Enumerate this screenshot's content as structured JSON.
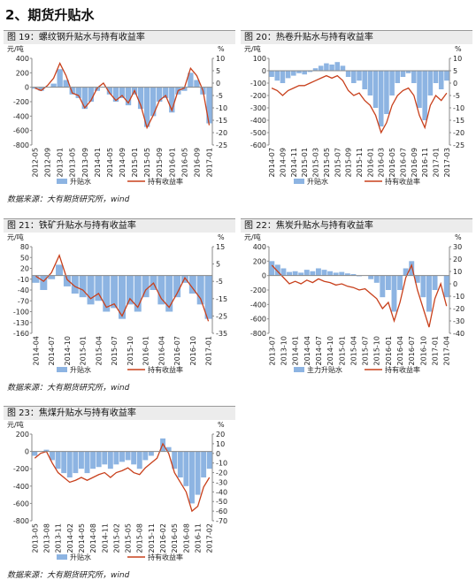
{
  "page_title": "2、期货升贴水",
  "chart_data": [
    {
      "type": "bar-line",
      "title": "图 19：螺纹钢升贴水与持有收益率",
      "source": "数据来源：大有期货研究所，wind",
      "y_unit": "元/吨",
      "y2_unit": "%",
      "categories": [
        "2012-05",
        null,
        "2012-09",
        null,
        "2013-01",
        null,
        "2013-05",
        null,
        "2013-09",
        null,
        "2014-01",
        null,
        "2014-05",
        null,
        "2014-09",
        null,
        "2015-01",
        null,
        "2015-05",
        null,
        "2015-09",
        null,
        "2016-01",
        null,
        "2016-05",
        null,
        "2016-09",
        null,
        "2017-01"
      ],
      "series": [
        {
          "name": "升贴水",
          "color": "#8db4e2",
          "values": [
            -20,
            -50,
            0,
            50,
            250,
            100,
            -100,
            -150,
            -300,
            -200,
            -50,
            0,
            -100,
            -200,
            -150,
            -250,
            -100,
            -300,
            -550,
            -400,
            -200,
            -150,
            -350,
            -100,
            -50,
            200,
            100,
            -100,
            -500
          ]
        },
        {
          "name": "持有收益率",
          "color": "#c8401c",
          "axis": "y2",
          "values": [
            -2,
            -3,
            -1,
            2,
            8,
            3,
            -4,
            -5,
            -10,
            -7,
            -2,
            0,
            -4,
            -7,
            -5,
            -8,
            -3,
            -9,
            -18,
            -13,
            -7,
            -5,
            -11,
            -3,
            -2,
            6,
            3,
            -3,
            -17
          ]
        }
      ],
      "ylim": [
        -800,
        400
      ],
      "yticks": [
        -800,
        -600,
        -400,
        -200,
        0,
        200,
        400
      ],
      "y2lim": [
        -25,
        10
      ],
      "y2ticks": [
        -25,
        -20,
        -15,
        -10,
        -5,
        0,
        5,
        10
      ]
    },
    {
      "type": "bar-line",
      "title": "图 20：热卷升贴水与持有收益率",
      "y_unit": "元/吨",
      "y2_unit": "%",
      "categories": [
        "2014-07",
        null,
        "2014-09",
        null,
        "2014-11",
        null,
        "2015-01",
        null,
        "2015-03",
        null,
        "2015-05",
        null,
        "2015-07",
        null,
        "2015-09",
        null,
        "2015-11",
        null,
        "2016-01",
        null,
        "2016-03",
        null,
        "2016-05",
        null,
        "2016-07",
        null,
        "2016-09",
        null,
        "2016-11",
        null,
        "2017-01",
        null,
        "2017-03"
      ],
      "series": [
        {
          "name": "升贴水",
          "color": "#8db4e2",
          "values": [
            -50,
            -80,
            -100,
            -60,
            -40,
            -20,
            -30,
            -10,
            20,
            40,
            60,
            50,
            70,
            40,
            -50,
            -100,
            -80,
            -150,
            -200,
            -300,
            -450,
            -350,
            -200,
            -100,
            -50,
            -20,
            -100,
            -300,
            -400,
            -200,
            -100,
            -150,
            -80
          ]
        },
        {
          "name": "持有收益率",
          "color": "#c8401c",
          "axis": "y2",
          "values": [
            -2,
            -3,
            -5,
            -3,
            -2,
            -1,
            -1,
            0,
            1,
            2,
            3,
            2,
            3,
            1,
            -3,
            -5,
            -4,
            -7,
            -9,
            -13,
            -20,
            -16,
            -9,
            -5,
            -3,
            -2,
            -5,
            -13,
            -18,
            -9,
            -5,
            -7,
            -4
          ]
        }
      ],
      "ylim": [
        -600,
        100
      ],
      "yticks": [
        -600,
        -500,
        -400,
        -300,
        -200,
        -100,
        0,
        100
      ],
      "y2lim": [
        -25,
        10
      ],
      "y2ticks": [
        -25,
        -20,
        -15,
        -10,
        -5,
        0,
        5,
        10
      ]
    },
    {
      "type": "bar-line",
      "title": "图 21：铁矿升贴水与持有收益率",
      "source": "数据来源：大有期货研究所，wind",
      "y_unit": "元/吨",
      "y2_unit": "%",
      "categories": [
        "2014-04",
        null,
        "2014-07",
        null,
        "2014-10",
        null,
        "2015-01",
        null,
        "2015-04",
        null,
        "2015-07",
        null,
        "2015-10",
        null,
        "2016-01",
        null,
        "2016-04",
        null,
        "2016-07",
        null,
        "2016-10",
        null,
        "2017-01"
      ],
      "series": [
        {
          "name": "升贴水",
          "color": "#8db4e2",
          "values": [
            -20,
            -40,
            -10,
            30,
            -30,
            -50,
            -60,
            -80,
            -70,
            -100,
            -90,
            -120,
            -80,
            -100,
            -60,
            -40,
            -80,
            -100,
            -60,
            -20,
            -50,
            -80,
            -120
          ]
        },
        {
          "name": "持有收益率",
          "color": "#c8401c",
          "axis": "y2",
          "values": [
            -2,
            -5,
            0,
            10,
            -4,
            -8,
            -10,
            -15,
            -12,
            -20,
            -18,
            -25,
            -15,
            -20,
            -10,
            -6,
            -15,
            -20,
            -12,
            -3,
            -9,
            -15,
            -28
          ]
        }
      ],
      "ylim": [
        -160,
        80
      ],
      "yticks": [
        -160,
        -130,
        -100,
        -70,
        -40,
        -10,
        20,
        50,
        80
      ],
      "y2lim": [
        -35,
        15
      ],
      "y2ticks": [
        -35,
        -25,
        -15,
        -5,
        5,
        15
      ]
    },
    {
      "type": "bar-line",
      "title": "图 22：焦炭升贴水与持有收益率",
      "y_unit": "元/吨",
      "y2_unit": "%",
      "categories": [
        "2013-07",
        null,
        "2013-10",
        null,
        "2014-01",
        null,
        "2014-04",
        null,
        "2014-07",
        null,
        "2014-10",
        null,
        "2015-01",
        null,
        "2015-04",
        null,
        "2015-07",
        null,
        "2015-10",
        null,
        "2016-01",
        null,
        "2016-04",
        null,
        "2016-07",
        null,
        "2016-10",
        null,
        "2017-01",
        null,
        "2017-04"
      ],
      "series": [
        {
          "name": "主力升贴水",
          "color": "#8db4e2",
          "values": [
            200,
            150,
            100,
            50,
            60,
            40,
            80,
            60,
            100,
            80,
            60,
            40,
            50,
            30,
            20,
            -10,
            0,
            -50,
            -100,
            -300,
            -200,
            -500,
            -200,
            100,
            200,
            -100,
            -300,
            -500,
            -200,
            0,
            -300
          ]
        },
        {
          "name": "持有收益率",
          "color": "#c8401c",
          "axis": "y2",
          "values": [
            15,
            10,
            5,
            0,
            2,
            0,
            3,
            1,
            4,
            2,
            1,
            -1,
            0,
            -2,
            -3,
            -5,
            -4,
            -8,
            -12,
            -20,
            -15,
            -30,
            -15,
            5,
            15,
            -5,
            -20,
            -35,
            -12,
            0,
            -18
          ]
        }
      ],
      "ylim": [
        -800,
        400
      ],
      "yticks": [
        -800,
        -600,
        -400,
        -200,
        0,
        200,
        400
      ],
      "y2lim": [
        -40,
        30
      ],
      "y2ticks": [
        -40,
        -30,
        -20,
        -10,
        0,
        10,
        20,
        30
      ]
    },
    {
      "type": "bar-line",
      "title": "图 23：焦煤升贴水与持有收益率",
      "source": "数据来源：大有期货研究所，wind",
      "y_unit": "元/吨",
      "y2_unit": "%",
      "categories": [
        "2013-05",
        null,
        "2013-08",
        null,
        "2013-11",
        null,
        "2014-02",
        null,
        "2014-05",
        null,
        "2014-08",
        null,
        "2014-11",
        null,
        "2015-02",
        null,
        "2015-05",
        null,
        "2015-08",
        null,
        "2015-11",
        null,
        "2016-02",
        null,
        "2016-05",
        null,
        "2016-08",
        null,
        "2016-11",
        null,
        "2017-02"
      ],
      "series": [
        {
          "name": "升贴水",
          "color": "#8db4e2",
          "values": [
            -50,
            0,
            20,
            -100,
            -200,
            -250,
            -300,
            -250,
            -200,
            -250,
            -200,
            -180,
            -150,
            -200,
            -150,
            -120,
            -100,
            -150,
            -200,
            -100,
            -50,
            0,
            150,
            50,
            -200,
            -300,
            -400,
            -600,
            -500,
            -300,
            -200
          ]
        },
        {
          "name": "持有收益率",
          "color": "#c8401c",
          "axis": "y2",
          "values": [
            -5,
            0,
            2,
            -10,
            -20,
            -25,
            -30,
            -28,
            -25,
            -28,
            -25,
            -22,
            -20,
            -25,
            -20,
            -18,
            -15,
            -20,
            -22,
            -15,
            -10,
            -5,
            10,
            0,
            -20,
            -30,
            -40,
            -60,
            -55,
            -35,
            -25
          ]
        }
      ],
      "ylim": [
        -800,
        200
      ],
      "yticks": [
        -800,
        -600,
        -400,
        -200,
        0,
        200
      ],
      "y2lim": [
        -70,
        20
      ],
      "y2ticks": [
        -70,
        -60,
        -50,
        -40,
        -30,
        -20,
        -10,
        0,
        10,
        20
      ]
    }
  ]
}
